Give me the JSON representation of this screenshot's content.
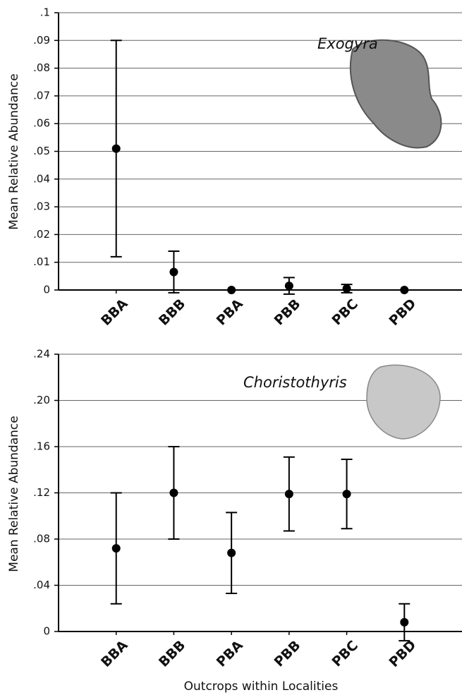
{
  "chart_data": [
    {
      "type": "errorbar",
      "annotation": "Exogyra",
      "y_label": "Mean Relative Abundance",
      "categories": [
        "BBA",
        "BBB",
        "PBA",
        "PBB",
        "PBC",
        "PBD"
      ],
      "values": [
        0.051,
        0.0065,
        0,
        0.0015,
        0.0005,
        0
      ],
      "errors": [
        0.039,
        0.0075,
        0,
        0.003,
        0.0015,
        0
      ],
      "color": "#000000",
      "grid": true,
      "ylim": [
        0,
        0.1
      ],
      "yticks": [
        0,
        {
          "value": 0.01,
          "label": ".01"
        },
        {
          "value": 0.02,
          "label": ".02"
        },
        {
          "value": 0.03,
          "label": ".03"
        },
        {
          "value": 0.04,
          "label": ".04"
        },
        {
          "value": 0.05,
          "label": ".05"
        },
        {
          "value": 0.06,
          "label": ".06"
        },
        {
          "value": 0.07,
          "label": ".07"
        },
        {
          "value": 0.08,
          "label": ".08"
        },
        {
          "value": 0.09,
          "label": ".09"
        },
        {
          "value": 0.1,
          "label": ".1"
        }
      ]
    },
    {
      "type": "errorbar",
      "annotation": "Choristothyris",
      "y_label": "Mean Relative Abundance",
      "x_label": "Outcrops within Localities",
      "categories": [
        "BBA",
        "BBB",
        "PBA",
        "PBB",
        "PBC",
        "PBD"
      ],
      "values": [
        0.072,
        0.12,
        0.068,
        0.119,
        0.119,
        0.008
      ],
      "errors": [
        0.048,
        0.04,
        0.035,
        0.032,
        0.03,
        0.016
      ],
      "color": "#000000",
      "grid": true,
      "ylim": [
        0,
        0.24
      ],
      "yticks": [
        0,
        {
          "value": 0.04,
          "label": ".04"
        },
        {
          "value": 0.08,
          "label": ".08"
        },
        {
          "value": 0.12,
          "label": ".12"
        },
        {
          "value": 0.16,
          "label": ".16"
        },
        {
          "value": 0.2,
          "label": ".20"
        },
        {
          "value": 0.24,
          "label": ".24"
        }
      ]
    }
  ]
}
